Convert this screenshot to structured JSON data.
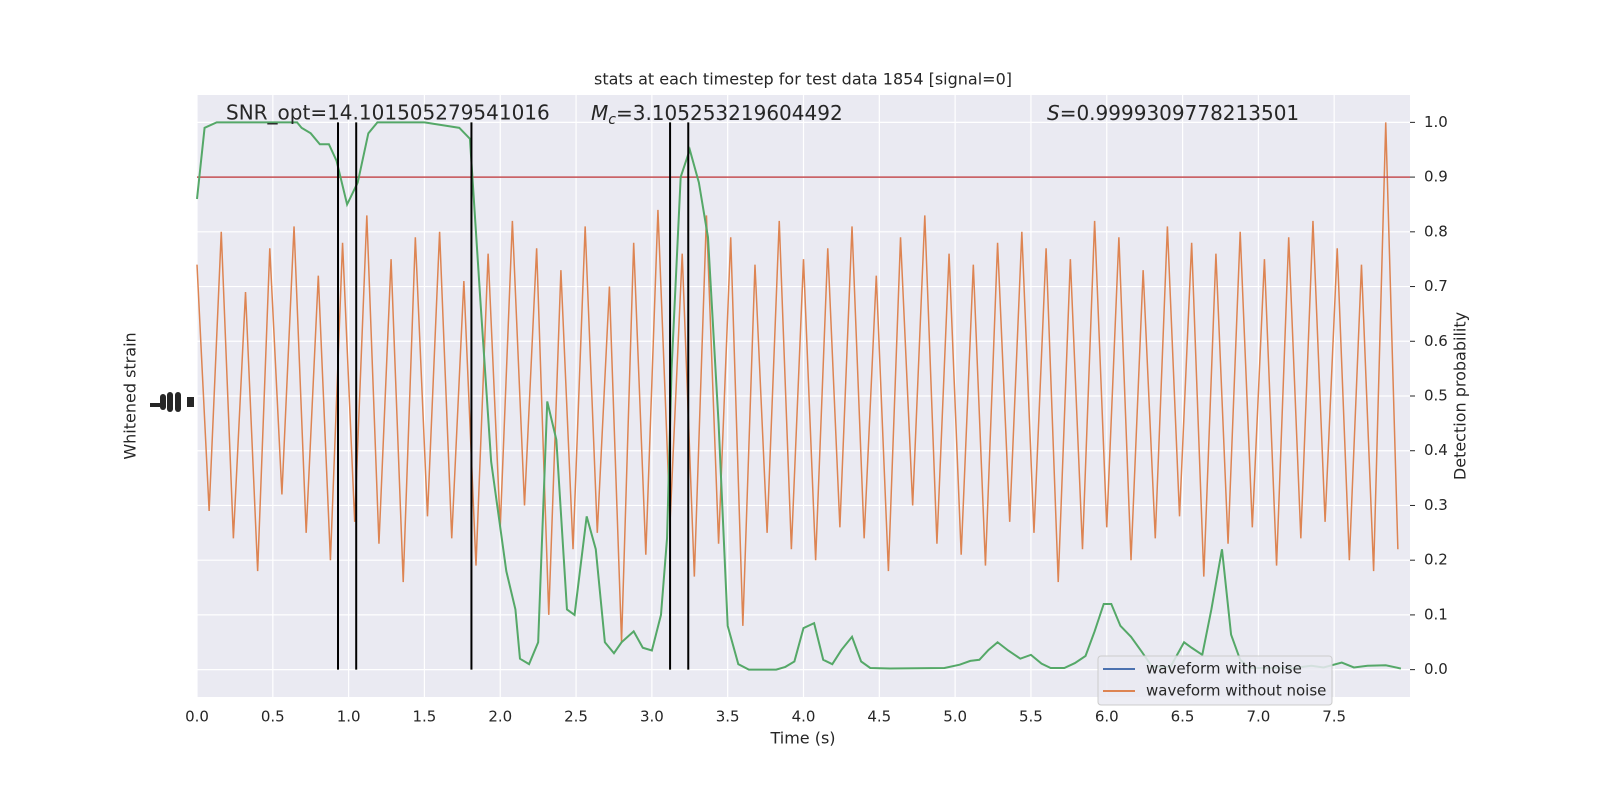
{
  "chart_data": {
    "type": "line",
    "title": "stats at each timestep for test data 1854 [signal=0]",
    "annotations": {
      "snr": "SNR_opt=14.101505279541016",
      "mc": {
        "symbol": "M",
        "subscript": "c",
        "text": "=3.105253219604492"
      },
      "s": {
        "symbol": "S",
        "text": "=0.9999309778213501"
      }
    },
    "xlabel": "Time (s)",
    "ylabel": "Whitened strain",
    "y2label": "Detection probability",
    "xlim": [
      0,
      8
    ],
    "xticks": [
      {
        "value": 0,
        "label": "0.0"
      },
      0.5,
      {
        "value": 1,
        "label": "1.0"
      },
      1.5,
      {
        "value": 2,
        "label": "2.0"
      },
      2.5,
      {
        "value": 3,
        "label": "3.0"
      },
      3.5,
      {
        "value": 4,
        "label": "4.0"
      },
      4.5,
      {
        "value": 5,
        "label": "5.0"
      },
      5.5,
      {
        "value": 6,
        "label": "6.0"
      },
      6.5,
      {
        "value": 7,
        "label": "7.0"
      },
      7.5
    ],
    "ylim": [
      -5.5,
      5.5
    ],
    "y2lim": [
      -0.05,
      1.05
    ],
    "y2ticks": [
      {
        "value": 0,
        "label": "0.0"
      },
      0.1,
      0.2,
      0.3,
      0.4,
      0.5,
      0.6,
      0.7,
      0.8,
      0.9,
      {
        "value": 1,
        "label": "1.0"
      }
    ],
    "grid": true,
    "legend": "lower right",
    "x": [
      0,
      0.08,
      0.16,
      0.24,
      0.32,
      0.4,
      0.48,
      0.56,
      0.64,
      0.72,
      0.8,
      0.88,
      0.96,
      1.04,
      1.12,
      1.2,
      1.28,
      1.36,
      1.44,
      1.52,
      1.6,
      1.68,
      1.76,
      1.84,
      1.92,
      2,
      2.08,
      2.16,
      2.24,
      2.32,
      2.4,
      2.48,
      2.56,
      2.64,
      2.72,
      2.8,
      2.88,
      2.96,
      3.04,
      3.12,
      3.2,
      3.28,
      3.36,
      3.44,
      3.52,
      3.6,
      3.68,
      3.76,
      3.84,
      3.92,
      4,
      4.08,
      4.16,
      4.24,
      4.32,
      4.4,
      4.48,
      4.56,
      4.64,
      4.72,
      4.8,
      4.88,
      4.96,
      5.04,
      5.12,
      5.2,
      5.28,
      5.36,
      5.44,
      5.52,
      5.6,
      5.68,
      5.76,
      5.84,
      5.92,
      6,
      6.08,
      6.16,
      6.24,
      6.32,
      6.4,
      6.48,
      6.56,
      6.64,
      6.72,
      6.8,
      6.88,
      6.96,
      7.04,
      7.12,
      7.2,
      7.28,
      7.36,
      7.44,
      7.52,
      7.6,
      7.68,
      7.76,
      7.84,
      7.92
    ],
    "series": [
      {
        "name": "waveform with noise",
        "color": "#4c72b0"
      },
      {
        "name": "waveform without noise",
        "color": "#dd8452",
        "values": [
          2.4,
          -2.1,
          3.0,
          -2.6,
          1.9,
          -3.2,
          2.7,
          -1.8,
          3.1,
          -2.5,
          2.2,
          -3.0,
          2.8,
          -2.3,
          3.3,
          -2.7,
          2.5,
          -3.4,
          2.9,
          -2.2,
          3.0,
          -2.6,
          2.1,
          -3.1,
          2.6,
          -2.4,
          3.2,
          -2.0,
          2.7,
          -4.0,
          2.3,
          -2.8,
          3.1,
          -2.5,
          2.0,
          -4.5,
          2.8,
          -2.9,
          3.4,
          -2.3,
          2.6,
          -3.3,
          3.3,
          -2.7,
          2.9,
          -4.2,
          2.4,
          -2.5,
          3.2,
          -2.8,
          2.5,
          -3.0,
          2.7,
          -2.4,
          3.1,
          -2.6,
          2.2,
          -3.2,
          2.9,
          -2.0,
          3.3,
          -2.7,
          2.6,
          -2.9,
          2.4,
          -3.1,
          2.8,
          -2.3,
          3.0,
          -2.5,
          2.7,
          -3.4,
          2.5,
          -2.8,
          3.2,
          -2.4,
          2.9,
          -3.0,
          2.3,
          -2.6,
          3.1,
          -2.2,
          2.8,
          -3.3,
          2.6,
          -2.7,
          3.0,
          -2.4,
          2.5,
          -3.1,
          2.9,
          -2.6,
          3.2,
          -2.3,
          2.7,
          -3.0,
          2.4,
          -3.2,
          5.0,
          -2.8
        ]
      }
    ],
    "probability": {
      "axis": "y2",
      "color": "#55a868",
      "x": [
        0,
        0.05,
        0.13,
        0.4,
        0.66,
        0.69,
        0.75,
        0.81,
        0.87,
        0.92,
        0.99,
        1.06,
        1.13,
        1.19,
        1.5,
        1.73,
        1.8,
        1.87,
        1.94,
        1.99,
        2.04,
        2.1,
        2.13,
        2.19,
        2.25,
        2.31,
        2.37,
        2.44,
        2.49,
        2.57,
        2.63,
        2.69,
        2.75,
        2.8,
        2.88,
        2.94,
        3,
        3.06,
        3.1,
        3.13,
        3.19,
        3.25,
        3.31,
        3.37,
        3.44,
        3.5,
        3.57,
        3.64,
        3.73,
        3.82,
        3.88,
        3.94,
        4,
        4.07,
        4.13,
        4.19,
        4.25,
        4.32,
        4.38,
        4.44,
        4.57,
        4.93,
        5.03,
        5.1,
        5.16,
        5.22,
        5.28,
        5.35,
        5.43,
        5.5,
        5.57,
        5.63,
        5.72,
        5.79,
        5.86,
        5.92,
        5.98,
        6.03,
        6.09,
        6.16,
        6.23,
        6.3,
        6.42,
        6.51,
        6.56,
        6.63,
        6.69,
        6.76,
        6.82,
        6.88,
        6.94,
        7.08,
        7.23,
        7.35,
        7.43,
        7.55,
        7.63,
        7.72,
        7.84,
        7.94
      ],
      "values": [
        0.86,
        0.99,
        1,
        1,
        1,
        0.99,
        0.98,
        0.96,
        0.96,
        0.93,
        0.85,
        0.89,
        0.98,
        1,
        1,
        0.99,
        0.97,
        0.67,
        0.38,
        0.28,
        0.18,
        0.11,
        0.02,
        0.01,
        0.05,
        0.49,
        0.42,
        0.11,
        0.1,
        0.28,
        0.22,
        0.05,
        0.03,
        0.05,
        0.07,
        0.04,
        0.035,
        0.1,
        0.24,
        0.55,
        0.9,
        0.95,
        0.89,
        0.79,
        0.45,
        0.08,
        0.01,
        0,
        0,
        0,
        0.005,
        0.015,
        0.076,
        0.085,
        0.018,
        0.01,
        0.036,
        0.06,
        0.015,
        0.003,
        0.002,
        0.003,
        0.009,
        0.016,
        0.018,
        0.036,
        0.05,
        0.035,
        0.02,
        0.027,
        0.011,
        0.003,
        0.003,
        0.012,
        0.025,
        0.07,
        0.12,
        0.12,
        0.08,
        0.06,
        0.033,
        0.005,
        0.005,
        0.05,
        0.04,
        0.027,
        0.11,
        0.22,
        0.064,
        0.018,
        0.003,
        0.003,
        0.003,
        0.007,
        0.004,
        0.013,
        0.004,
        0.007,
        0.008,
        0.002
      ]
    },
    "threshold": {
      "value": 0.9,
      "color": "#c44e52"
    },
    "events": {
      "x": [
        0.93,
        1.05,
        1.81,
        3.12,
        3.24
      ],
      "color": "#000000"
    }
  }
}
